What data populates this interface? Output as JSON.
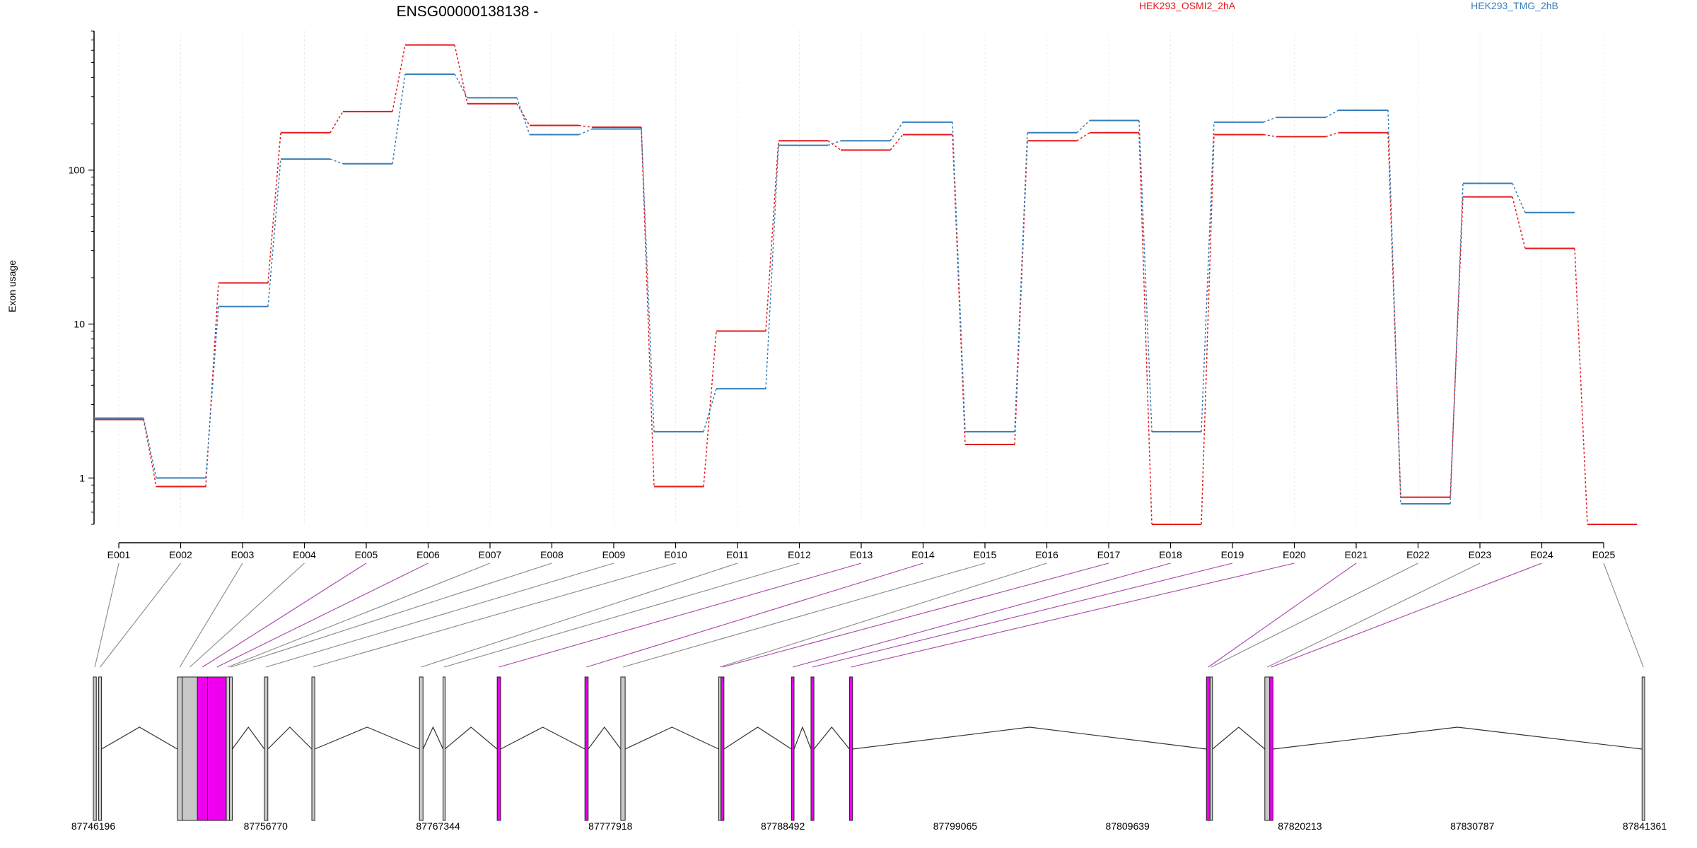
{
  "chart_data": {
    "type": "line",
    "title": "ENSG00000138138 -",
    "ylabel": "Exon usage",
    "yscale": "log",
    "ylim": [
      0.5,
      800
    ],
    "y_ticks": [
      1,
      10,
      100
    ],
    "grid": "vertical",
    "legend_position": "top",
    "colors": {
      "HEK293_OSMI2_2hA": "#e41a1c",
      "HEK293_TMG_2hB": "#377eb8",
      "differential_exon": "#ee00ee",
      "normal_exon": "#c8c8c8",
      "connector_normal": "#888888",
      "connector_diff": "#aa44aa"
    },
    "categories": [
      "E001",
      "E002",
      "E003",
      "E004",
      "E005",
      "E006",
      "E007",
      "E008",
      "E009",
      "E010",
      "E011",
      "E012",
      "E013",
      "E014",
      "E015",
      "E016",
      "E017",
      "E018",
      "E019",
      "E020",
      "E021",
      "E022",
      "E023",
      "E024",
      "E025"
    ],
    "differential": [
      false,
      false,
      false,
      false,
      true,
      true,
      false,
      false,
      false,
      false,
      false,
      false,
      true,
      true,
      false,
      false,
      true,
      true,
      true,
      true,
      true,
      false,
      false,
      true,
      false
    ],
    "series": [
      {
        "name": "HEK293_OSMI2_2hA",
        "values": [
          2.4,
          0.88,
          18.5,
          175,
          240,
          650,
          270,
          195,
          190,
          0.88,
          9,
          155,
          135,
          170,
          1.65,
          155,
          175,
          0.5,
          170,
          165,
          175,
          0.75,
          67,
          31,
          0.5
        ]
      },
      {
        "name": "HEK293_TMG_2hB",
        "values": [
          2.45,
          1.0,
          13,
          118,
          110,
          420,
          295,
          170,
          185,
          2.0,
          3.8,
          145,
          155,
          205,
          2.0,
          175,
          210,
          2.0,
          205,
          220,
          245,
          0.68,
          82,
          53,
          null
        ]
      }
    ],
    "genomic_axis": {
      "tick_labels": [
        "87746196",
        "87756770",
        "87767344",
        "87777918",
        "87788492",
        "87799065",
        "87809639",
        "87820213",
        "87830787",
        "87841361"
      ],
      "exons": [
        {
          "id": "E001",
          "start": 87746196,
          "end": 87746380
        },
        {
          "id": "E002",
          "start": 87746520,
          "end": 87746700
        },
        {
          "id": "E003",
          "start": 87751350,
          "end": 87751650
        },
        {
          "id": "E004",
          "start": 87751650,
          "end": 87752580
        },
        {
          "id": "E005",
          "start": 87752580,
          "end": 87753200
        },
        {
          "id": "E006",
          "start": 87753200,
          "end": 87754350
        },
        {
          "id": "E007",
          "start": 87754350,
          "end": 87754550
        },
        {
          "id": "E008",
          "start": 87754550,
          "end": 87754720
        },
        {
          "id": "E009",
          "start": 87756690,
          "end": 87756900
        },
        {
          "id": "E010",
          "start": 87759600,
          "end": 87759780
        },
        {
          "id": "E011",
          "start": 87766200,
          "end": 87766420
        },
        {
          "id": "E012",
          "start": 87767650,
          "end": 87767760
        },
        {
          "id": "E013",
          "start": 87770970,
          "end": 87771180
        },
        {
          "id": "E014",
          "start": 87776350,
          "end": 87776550
        },
        {
          "id": "E015",
          "start": 87778550,
          "end": 87778820
        },
        {
          "id": "E016",
          "start": 87784560,
          "end": 87784700
        },
        {
          "id": "E017",
          "start": 87784700,
          "end": 87784880
        },
        {
          "id": "E018",
          "start": 87789020,
          "end": 87789180
        },
        {
          "id": "E019",
          "start": 87790220,
          "end": 87790400
        },
        {
          "id": "E020",
          "start": 87792580,
          "end": 87792770
        },
        {
          "id": "E021",
          "start": 87814480,
          "end": 87814700
        },
        {
          "id": "E022",
          "start": 87814700,
          "end": 87814850
        },
        {
          "id": "E023",
          "start": 87818060,
          "end": 87818360
        },
        {
          "id": "E024",
          "start": 87818360,
          "end": 87818560
        },
        {
          "id": "E025",
          "start": 87841200,
          "end": 87841361
        }
      ]
    }
  }
}
